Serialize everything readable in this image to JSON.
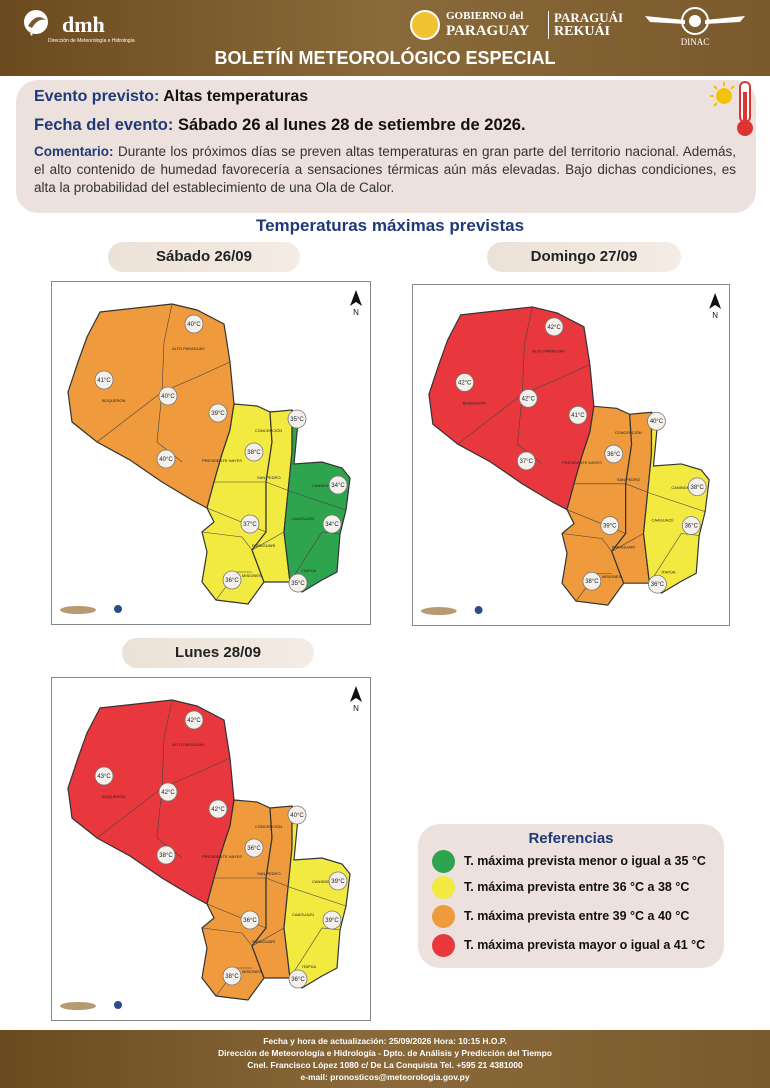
{
  "header": {
    "dmh_logo": "dmh",
    "dmh_sub": "Dirección de Meteorología e Hidrología",
    "gov_line1": "GOBIERNO del",
    "gov_line2": "PARAGUAY",
    "rek_line1": "PARAGUÁI",
    "rek_line2": "REKUÁI",
    "dinac": "DINAC",
    "title": "BOLETÍN METEOROLÓGICO ESPECIAL"
  },
  "event": {
    "label_event": "Evento previsto:",
    "event": "Altas temperaturas",
    "label_date": "Fecha del evento:",
    "date": "Sábado 26 al lunes 28 de setiembre de 2026.",
    "label_comment": "Comentario:",
    "comment": "Durante los próximos días se preven altas temperaturas en gran parte del territorio nacional. Además, el alto contenido de humedad favorecería a sensaciones térmicas aún más elevadas. Bajo dichas condiciones, es alta la probabilidad del establecimiento de una Ola de Calor."
  },
  "section_title": "Temperaturas máximas previstas",
  "maps": [
    {
      "day": "Sábado 26/09",
      "chaco": "#ef9a3c",
      "east_west": "#f2ea40",
      "east_mid": "#f2ea40",
      "east_far": "#2ea44f",
      "temps": [
        "40°C",
        "41°C",
        "40°C",
        "39°C",
        "40°C",
        "35°C",
        "38°C",
        "34°C",
        "37°C",
        "34°C",
        "36°C",
        "35°C"
      ]
    },
    {
      "day": "Domingo 27/09",
      "chaco": "#e8383d",
      "east_west": "#ef9a3c",
      "east_mid": "#ef9a3c",
      "east_far": "#f2ea40",
      "temps": [
        "42°C",
        "42°C",
        "42°C",
        "41°C",
        "37°C",
        "40°C",
        "36°C",
        "38°C",
        "39°C",
        "36°C",
        "38°C",
        "36°C"
      ]
    },
    {
      "day": "Lunes 28/09",
      "chaco": "#e8383d",
      "east_west": "#ef9a3c",
      "east_mid": "#ef9a3c",
      "east_far": "#f2ea40",
      "temps": [
        "42°C",
        "43°C",
        "42°C",
        "42°C",
        "38°C",
        "40°C",
        "36°C",
        "39°C",
        "36°C",
        "39°C",
        "38°C",
        "36°C"
      ]
    }
  ],
  "legend": {
    "title": "Referencias",
    "items": [
      {
        "color": "#2ea44f",
        "text": "T. máxima prevista menor o igual a 35 °C"
      },
      {
        "color": "#f2ea40",
        "text": "T. máxima prevista entre  36 °C a  38 °C"
      },
      {
        "color": "#ef9a3c",
        "text": "T. máxima prevista entre  39 °C a  40 °C"
      },
      {
        "color": "#e8383d",
        "text": "T. máxima prevista mayor o igual a 41 °C"
      }
    ]
  },
  "footer": {
    "line1": "Fecha y hora de actualización: 25/09/2026 Hora: 10:15 H.O.P.",
    "line2": "Dirección de Meteorología e Hidrología - Dpto. de Análisis y Predicción del Tiempo",
    "line3": "Cnel. Francisco López 1080 c/ De La Conquista Tel. +595 21 4381000",
    "line4": "e-mail: pronosticos@meteorologia.gov.py"
  }
}
